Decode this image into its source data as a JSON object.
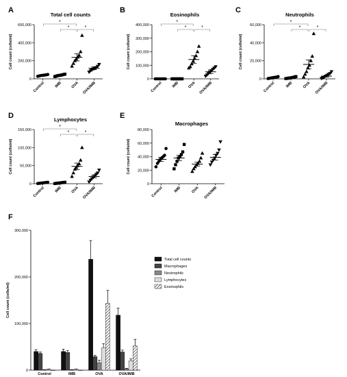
{
  "chart_data": [
    {
      "panel_letter": "A",
      "type": "scatter",
      "title": "Total cell counts",
      "ylabel": "Cell count (cells/ml)",
      "categories": [
        "Control",
        "IMB",
        "OVA",
        "OVA/IMB"
      ],
      "ylim": [
        0,
        600000
      ],
      "yticks": [
        0,
        200000,
        400000,
        600000
      ],
      "yticklabels": [
        "0",
        "200,000",
        "400,000",
        "600,000"
      ],
      "marker_shapes": [
        "circle",
        "square",
        "triangle",
        "triangle-down"
      ],
      "points": [
        [
          28000,
          32000,
          36000,
          38000,
          40000,
          42000,
          45000,
          48000
        ],
        [
          25000,
          30000,
          35000,
          38000,
          40000,
          44000,
          48000,
          52000
        ],
        [
          140000,
          170000,
          200000,
          220000,
          240000,
          260000,
          300000,
          480000
        ],
        [
          75000,
          90000,
          100000,
          110000,
          115000,
          125000,
          140000,
          160000
        ]
      ],
      "means": [
        40000,
        40000,
        238000,
        118000
      ],
      "sem": [
        4000,
        5000,
        40000,
        15000
      ],
      "significance": [
        {
          "from": 0,
          "to": 2,
          "label": "*"
        },
        {
          "from": 1,
          "to": 2,
          "label": "*"
        },
        {
          "from": 2,
          "to": 3,
          "label": "*"
        }
      ]
    },
    {
      "panel_letter": "B",
      "type": "scatter",
      "title": "Eosinophils",
      "ylabel": "Cell count (cells/ml)",
      "categories": [
        "Control",
        "IMB",
        "OVA",
        "OVA/IMB"
      ],
      "ylim": [
        0,
        400000
      ],
      "yticks": [
        0,
        100000,
        200000,
        300000,
        400000
      ],
      "yticklabels": [
        "0",
        "100,000",
        "200,000",
        "300,000",
        "400,000"
      ],
      "marker_shapes": [
        "circle",
        "square",
        "triangle",
        "triangle-down"
      ],
      "points": [
        [
          0,
          0,
          0,
          0,
          0,
          0,
          0,
          0
        ],
        [
          0,
          0,
          0,
          0,
          0,
          0,
          0,
          0
        ],
        [
          80000,
          90000,
          110000,
          130000,
          150000,
          170000,
          200000,
          240000
        ],
        [
          20000,
          30000,
          40000,
          50000,
          60000,
          70000,
          80000,
          90000
        ]
      ],
      "means": [
        0,
        0,
        143000,
        52000
      ],
      "sem": [
        0,
        0,
        28000,
        14000
      ],
      "significance": [
        {
          "from": 0,
          "to": 2,
          "label": "*"
        },
        {
          "from": 1,
          "to": 2,
          "label": "*"
        },
        {
          "from": 2,
          "to": 3,
          "label": "*"
        }
      ]
    },
    {
      "panel_letter": "C",
      "type": "scatter",
      "title": "Neutrophils",
      "ylabel": "Cell count (cells/ml)",
      "categories": [
        "Control",
        "IMB",
        "OVA",
        "OVA/IMB"
      ],
      "ylim": [
        0,
        60000
      ],
      "yticks": [
        0,
        20000,
        40000,
        60000
      ],
      "yticklabels": [
        "0",
        "20,000",
        "40,000",
        "60,000"
      ],
      "marker_shapes": [
        "circle",
        "square",
        "triangle",
        "triangle-down"
      ],
      "points": [
        [
          300,
          600,
          900,
          1200,
          1500,
          1800,
          2000,
          2500
        ],
        [
          300,
          500,
          800,
          1000,
          1300,
          1600,
          2000,
          2500
        ],
        [
          2000,
          5000,
          8000,
          12000,
          15000,
          20000,
          25000,
          50000
        ],
        [
          500,
          1000,
          2000,
          3000,
          4000,
          5000,
          6000,
          8000
        ]
      ],
      "means": [
        1000,
        1000,
        16000,
        3000
      ],
      "sem": [
        300,
        300,
        5000,
        1000
      ],
      "significance": [
        {
          "from": 0,
          "to": 2,
          "label": "*"
        },
        {
          "from": 1,
          "to": 2,
          "label": "*"
        },
        {
          "from": 2,
          "to": 3,
          "label": "*"
        }
      ]
    },
    {
      "panel_letter": "D",
      "type": "scatter",
      "title": "Lymphocytes",
      "ylabel": "Cell count (cells/ml)",
      "categories": [
        "Control",
        "IMB",
        "OVA",
        "OVA/IMB"
      ],
      "ylim": [
        0,
        150000
      ],
      "yticks": [
        0,
        50000,
        100000,
        150000
      ],
      "yticklabels": [
        "0",
        "50,000",
        "100,000",
        "150,000"
      ],
      "marker_shapes": [
        "circle",
        "square",
        "triangle",
        "triangle-down"
      ],
      "points": [
        [
          500,
          1000,
          1500,
          2000,
          2500,
          3000,
          3500,
          4000
        ],
        [
          500,
          1000,
          1500,
          2000,
          2500,
          3000,
          3500,
          4000
        ],
        [
          20000,
          30000,
          40000,
          45000,
          50000,
          55000,
          65000,
          100000
        ],
        [
          5000,
          10000,
          14000,
          18000,
          22000,
          26000,
          30000,
          38000
        ]
      ],
      "means": [
        2000,
        2000,
        48000,
        20000
      ],
      "sem": [
        500,
        500,
        9000,
        4000
      ],
      "significance": [
        {
          "from": 0,
          "to": 2,
          "label": "*"
        },
        {
          "from": 1,
          "to": 2,
          "label": "*"
        },
        {
          "from": 2,
          "to": 3,
          "label": "*"
        }
      ]
    },
    {
      "panel_letter": "E",
      "type": "scatter",
      "title": "Macrophages",
      "ylabel": "Cell count (cells/ml)",
      "categories": [
        "Control",
        "IMB",
        "OVA",
        "OVA/IMB"
      ],
      "ylim": [
        0,
        80000
      ],
      "yticks": [
        0,
        20000,
        40000,
        60000,
        80000
      ],
      "yticklabels": [
        "0",
        "20,000",
        "40,000",
        "60,000",
        "80,000"
      ],
      "marker_shapes": [
        "circle",
        "square",
        "triangle",
        "triangle-down"
      ],
      "points": [
        [
          25000,
          30000,
          33000,
          36000,
          38000,
          40000,
          42000,
          52000
        ],
        [
          22000,
          28000,
          33000,
          38000,
          40000,
          43000,
          47000,
          58000
        ],
        [
          18000,
          22000,
          25000,
          28000,
          30000,
          33000,
          38000,
          45000
        ],
        [
          28000,
          32000,
          35000,
          38000,
          42000,
          45000,
          50000,
          62000
        ]
      ],
      "means": [
        36000,
        38000,
        29000,
        39000
      ],
      "sem": [
        3000,
        4000,
        3000,
        4000
      ],
      "significance": []
    },
    {
      "panel_letter": "F",
      "type": "bar",
      "ylabel": "Cell count (cells/ml)",
      "categories": [
        "Control",
        "IMB",
        "OVA",
        "OVA/IMB"
      ],
      "ylim": [
        0,
        300000
      ],
      "yticks": [
        0,
        100000,
        200000,
        300000
      ],
      "yticklabels": [
        "0",
        "100,000",
        "200,000",
        "300,000"
      ],
      "legend_position": "right",
      "series": [
        {
          "name": "Total cell counts",
          "fill": "#111111",
          "pattern": "solid",
          "values": [
            40000,
            40000,
            238000,
            118000
          ],
          "errors": [
            4000,
            5000,
            40000,
            15000
          ]
        },
        {
          "name": "Macrophages",
          "fill": "#444444",
          "pattern": "solid",
          "values": [
            36000,
            38000,
            29000,
            39000
          ],
          "errors": [
            3000,
            4000,
            3000,
            4000
          ]
        },
        {
          "name": "Neutrophils",
          "fill": "#888888",
          "pattern": "solid",
          "values": [
            1000,
            1000,
            16000,
            3000
          ],
          "errors": [
            300,
            300,
            5000,
            1000
          ]
        },
        {
          "name": "Lymphocytes",
          "fill": "#dddddd",
          "pattern": "solid",
          "values": [
            2000,
            2000,
            48000,
            20000
          ],
          "errors": [
            500,
            500,
            9000,
            4000
          ]
        },
        {
          "name": "Eosinophils",
          "fill": "#bbbbbb",
          "pattern": "hatch",
          "values": [
            0,
            0,
            143000,
            52000
          ],
          "errors": [
            0,
            0,
            28000,
            14000
          ]
        }
      ]
    }
  ]
}
